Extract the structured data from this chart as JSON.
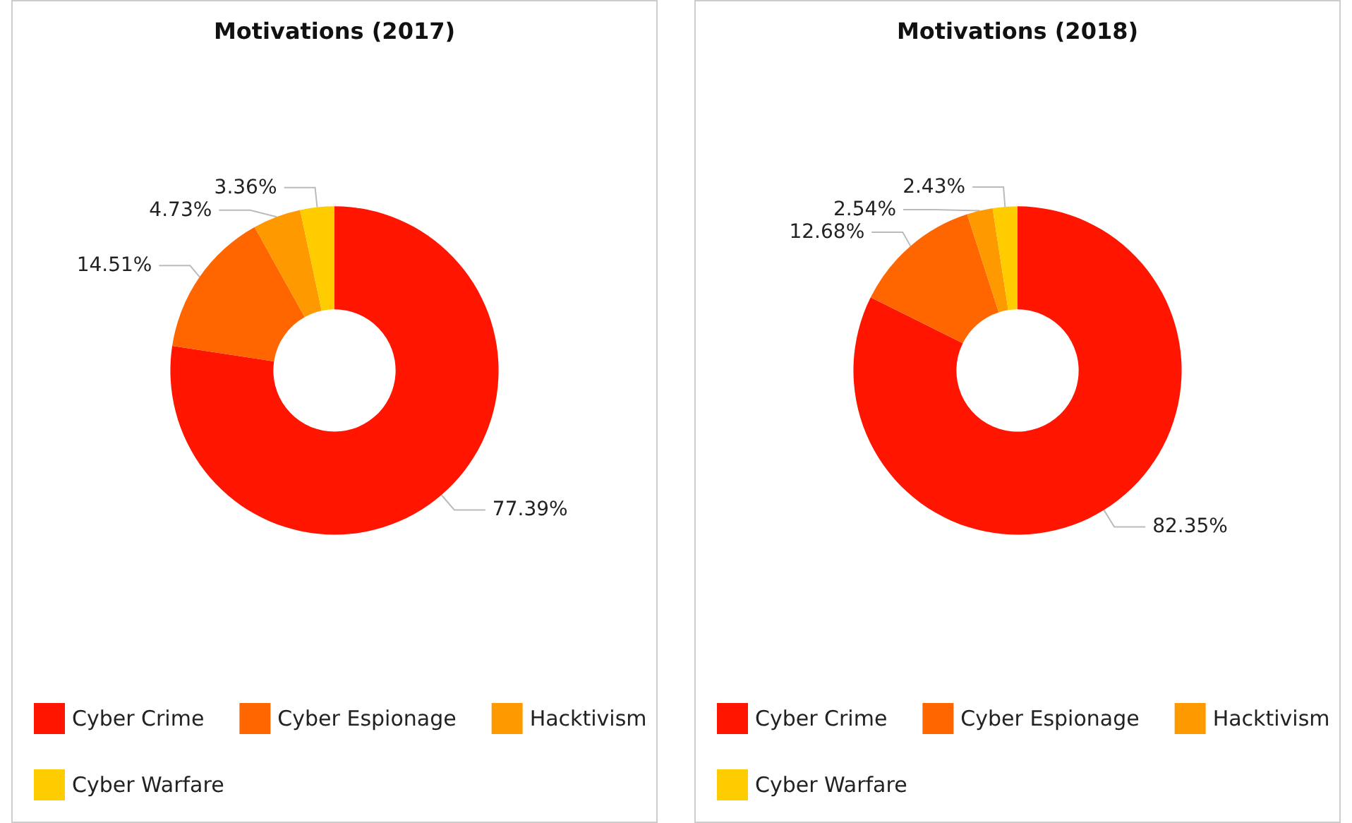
{
  "chart_data": [
    {
      "type": "donut",
      "title": "Motivations (2017)",
      "categories": [
        "Cyber Crime",
        "Cyber Espionage",
        "Hacktivism",
        "Cyber Warfare"
      ],
      "values": [
        77.39,
        14.51,
        4.73,
        3.36
      ],
      "value_labels": [
        "77.39%",
        "14.51%",
        "4.73%",
        "3.36%"
      ],
      "colors": [
        "#ff1500",
        "#ff6600",
        "#ff9900",
        "#ffcc00"
      ],
      "legend": "bottom"
    },
    {
      "type": "donut",
      "title": "Motivations (2018)",
      "categories": [
        "Cyber Crime",
        "Cyber Espionage",
        "Hacktivism",
        "Cyber Warfare"
      ],
      "values": [
        82.35,
        12.68,
        2.54,
        2.43
      ],
      "value_labels": [
        "82.35%",
        "12.68%",
        "2.54%",
        "2.43%"
      ],
      "colors": [
        "#ff1500",
        "#ff6600",
        "#ff9900",
        "#ffcc00"
      ],
      "legend": "bottom"
    }
  ]
}
